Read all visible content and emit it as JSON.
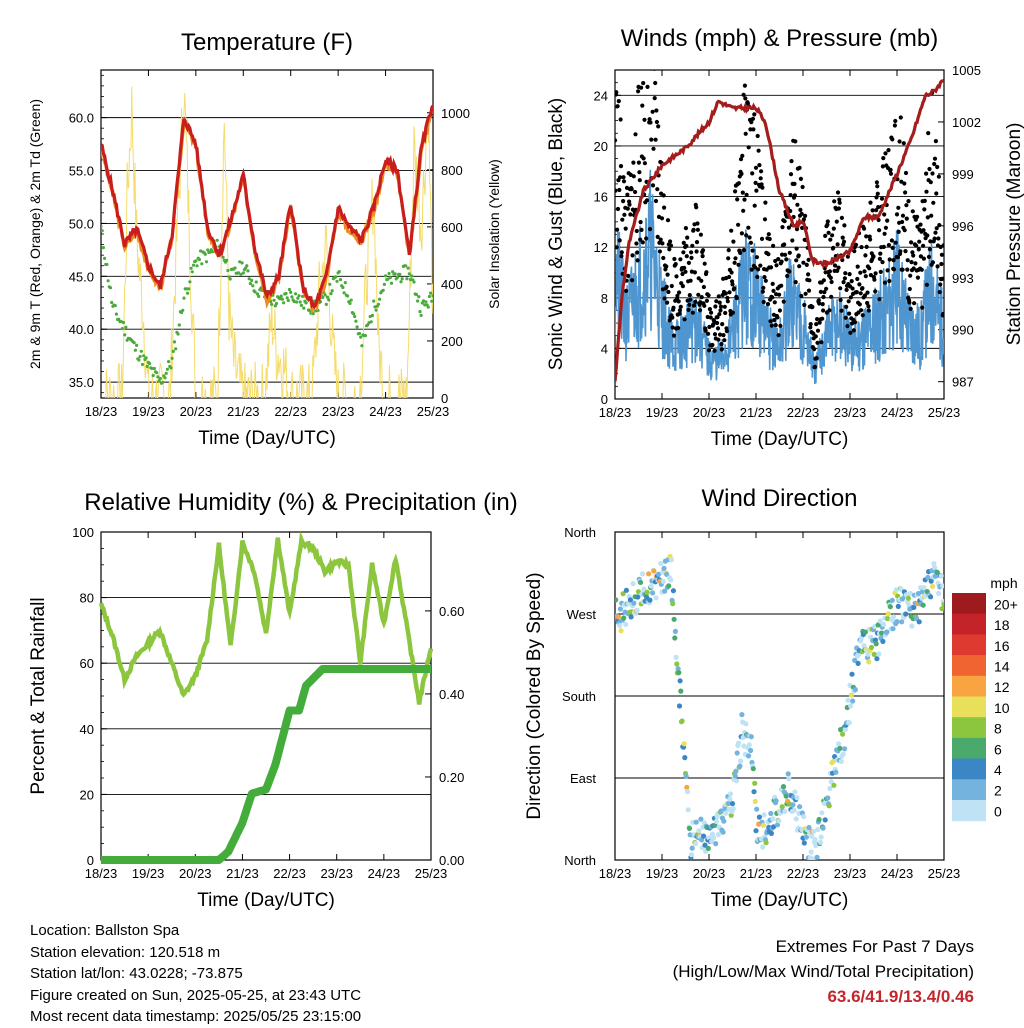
{
  "colors": {
    "temp_2m": "#c81e1e",
    "temp_9m": "#ef8a1e",
    "dewpoint": "#4aab3c",
    "solar": "#f5dc6a",
    "gust": "#000000",
    "sonic_wind": "#4f96d1",
    "pressure": "#a31d1d",
    "rh": "#8cc63f",
    "precip": "#43ac3b"
  },
  "chart_data": [
    {
      "id": "temperature",
      "type": "line",
      "title": "Temperature (F)",
      "xlabel": "Time (Day/UTC)",
      "ylabel_left": "2m & 9m T (Red, Orange) & 2m Td (Green)",
      "ylabel_right": "Solar Insolation (Yellow)",
      "x_ticks": [
        "18/23",
        "19/23",
        "20/23",
        "21/23",
        "22/23",
        "23/23",
        "24/23",
        "25/23"
      ],
      "xlim": [
        0,
        7
      ],
      "ylim_left": [
        33.5,
        64.5
      ],
      "y_ticks_left": [
        "35.0",
        "40.0",
        "45.0",
        "50.0",
        "55.0",
        "60.0"
      ],
      "ylim_right": [
        0,
        1150
      ],
      "y_ticks_right": [
        "0",
        "200",
        "400",
        "600",
        "800",
        "1000"
      ],
      "grid": true,
      "series": [
        {
          "name": "2m T",
          "color": "#c81e1e",
          "x": [
            0,
            0.25,
            0.5,
            0.75,
            1.0,
            1.25,
            1.5,
            1.75,
            2.0,
            2.25,
            2.5,
            2.75,
            3.0,
            3.25,
            3.5,
            3.75,
            4.0,
            4.25,
            4.5,
            4.75,
            5.0,
            5.25,
            5.5,
            5.75,
            6.0,
            6.25,
            6.5,
            6.75,
            7.0
          ],
          "values": [
            57.5,
            53.0,
            48.0,
            49.5,
            46.0,
            44.0,
            49.0,
            60.0,
            57.5,
            49.5,
            47.0,
            50.5,
            54.5,
            47.5,
            43.0,
            45.0,
            52.0,
            44.0,
            42.0,
            45.0,
            51.5,
            49.5,
            48.5,
            51.5,
            56.0,
            55.0,
            47.0,
            57.0,
            61.5
          ]
        },
        {
          "name": "9m T",
          "color": "#ef8a1e",
          "x": [
            0,
            0.25,
            0.5,
            0.75,
            1.0,
            1.25,
            1.5,
            1.75,
            2.0,
            2.25,
            2.5,
            2.75,
            3.0,
            3.25,
            3.5,
            3.75,
            4.0,
            4.25,
            4.5,
            4.75,
            5.0,
            5.25,
            5.5,
            5.75,
            6.0,
            6.25,
            6.5,
            6.75,
            7.0
          ],
          "values": [
            57.2,
            52.7,
            47.8,
            49.2,
            45.8,
            43.8,
            48.7,
            59.6,
            57.2,
            49.2,
            46.8,
            50.2,
            54.2,
            47.3,
            42.8,
            44.8,
            51.7,
            43.8,
            41.8,
            44.8,
            51.2,
            49.2,
            48.3,
            51.2,
            55.7,
            54.7,
            46.8,
            56.7,
            61.0
          ]
        },
        {
          "name": "2m Td",
          "color": "#4aab3c",
          "x": [
            0,
            0.25,
            0.5,
            0.75,
            1.0,
            1.25,
            1.5,
            1.75,
            2.0,
            2.25,
            2.5,
            2.75,
            3.0,
            3.25,
            3.5,
            3.75,
            4.0,
            4.25,
            4.5,
            4.75,
            5.0,
            5.25,
            5.5,
            5.75,
            6.0,
            6.25,
            6.5,
            6.75,
            7.0
          ],
          "values": [
            49.5,
            42.0,
            40.0,
            38.0,
            36.5,
            35.0,
            37.0,
            43.0,
            46.5,
            47.0,
            48.0,
            45.0,
            46.0,
            44.0,
            43.0,
            42.5,
            43.5,
            42.5,
            42.0,
            43.0,
            45.0,
            43.0,
            38.5,
            42.0,
            44.5,
            45.0,
            45.5,
            42.0,
            43.0
          ]
        },
        {
          "name": "Solar Insolation",
          "color": "#f5dc6a",
          "axis": "right",
          "x": [
            0,
            0.45,
            0.55,
            0.65,
            0.75,
            0.9,
            1.0,
            1.45,
            1.6,
            1.75,
            1.9,
            2.0,
            2.45,
            2.6,
            2.7,
            2.8,
            3.0,
            3.45,
            3.6,
            3.7,
            3.85,
            4.0,
            4.45,
            4.6,
            4.75,
            4.9,
            5.0,
            5.45,
            5.6,
            5.75,
            5.85,
            6.0,
            6.45,
            6.6,
            6.75,
            6.9,
            7.0
          ],
          "values": [
            0,
            0,
            700,
            1020,
            560,
            280,
            0,
            0,
            560,
            1090,
            420,
            0,
            0,
            980,
            300,
            120,
            0,
            0,
            290,
            170,
            110,
            0,
            0,
            360,
            540,
            140,
            0,
            0,
            420,
            730,
            180,
            0,
            0,
            880,
            600,
            1020,
            280
          ]
        }
      ]
    },
    {
      "id": "winds",
      "type": "scatter",
      "title": "Winds (mph) & Pressure (mb)",
      "xlabel": "Time (Day/UTC)",
      "ylabel_left": "Sonic Wind & Gust (Blue, Black)",
      "ylabel_right": "Station Pressure (Maroon)",
      "x_ticks": [
        "18/23",
        "19/23",
        "20/23",
        "21/23",
        "22/23",
        "23/23",
        "24/23",
        "25/23"
      ],
      "xlim": [
        0,
        7
      ],
      "ylim_left": [
        0,
        26
      ],
      "y_ticks_left": [
        "0",
        "4",
        "8",
        "12",
        "16",
        "20",
        "24"
      ],
      "ylim_right": [
        986,
        1005
      ],
      "y_ticks_right": [
        "987",
        "990",
        "993",
        "996",
        "999",
        "1002",
        "1005"
      ],
      "grid": true,
      "series": [
        {
          "name": "Gust",
          "color": "#000000",
          "x": [
            0,
            0.25,
            0.5,
            0.75,
            1.0,
            1.25,
            1.5,
            1.75,
            2.0,
            2.25,
            2.5,
            2.75,
            3.0,
            3.25,
            3.5,
            3.75,
            4.0,
            4.25,
            4.5,
            4.75,
            5.0,
            5.25,
            5.5,
            5.75,
            6.0,
            6.25,
            6.5,
            6.75,
            7.0
          ],
          "values": [
            20,
            12,
            18,
            22,
            14,
            8,
            10,
            12,
            6,
            6,
            10,
            18,
            16,
            10,
            8,
            16,
            12,
            4,
            10,
            12,
            8,
            10,
            12,
            14,
            18,
            12,
            10,
            18,
            10
          ]
        },
        {
          "name": "Sonic Wind",
          "color": "#4f96d1",
          "x": [
            0,
            0.25,
            0.5,
            0.75,
            1.0,
            1.25,
            1.5,
            1.75,
            2.0,
            2.25,
            2.5,
            2.75,
            3.0,
            3.25,
            3.5,
            3.75,
            4.0,
            4.25,
            4.5,
            4.75,
            5.0,
            5.25,
            5.5,
            5.75,
            6.0,
            6.25,
            6.5,
            6.75,
            7.0
          ],
          "values": [
            10,
            6,
            9,
            12,
            7,
            4,
            5,
            6,
            3,
            3,
            5,
            9,
            8,
            5,
            4,
            8,
            6,
            2,
            5,
            6,
            4,
            5,
            6,
            7,
            9,
            6,
            5,
            9,
            5
          ]
        },
        {
          "name": "Station Pressure",
          "color": "#a31d1d",
          "axis": "right",
          "x": [
            0,
            0.15,
            0.3,
            0.6,
            1.0,
            1.5,
            2.0,
            2.2,
            2.5,
            3.0,
            3.2,
            3.5,
            3.8,
            4.0,
            4.2,
            4.5,
            5.0,
            5.3,
            5.6,
            6.0,
            6.3,
            6.6,
            6.8,
            7.0
          ],
          "values": [
            987,
            992,
            995,
            998,
            999.5,
            1000.5,
            1002,
            1003.2,
            1002.8,
            1002.8,
            1002,
            998,
            996,
            996.3,
            994,
            993.8,
            994.5,
            996.5,
            996.5,
            999,
            1001,
            1003.5,
            1003.8,
            1004.5
          ]
        }
      ]
    },
    {
      "id": "humidity",
      "type": "line",
      "title": "Relative Humidity (%) & Precipitation (in)",
      "xlabel": "Time (Day/UTC)",
      "ylabel_left": "Percent & Total Rainfall",
      "x_ticks": [
        "18/23",
        "19/23",
        "20/23",
        "21/23",
        "22/23",
        "23/23",
        "24/23",
        "25/23"
      ],
      "xlim": [
        0,
        7
      ],
      "ylim_left": [
        0,
        100
      ],
      "y_ticks_left": [
        "0",
        "20",
        "40",
        "60",
        "80",
        "100"
      ],
      "ylim_right": [
        0,
        0.79
      ],
      "y_ticks_right": [
        "0.00",
        "0.20",
        "0.40",
        "0.60"
      ],
      "grid": true,
      "series": [
        {
          "name": "Relative Humidity",
          "color": "#8cc63f",
          "x": [
            0,
            0.25,
            0.5,
            0.75,
            1.0,
            1.25,
            1.5,
            1.75,
            2.0,
            2.25,
            2.5,
            2.75,
            3.0,
            3.25,
            3.5,
            3.75,
            4.0,
            4.25,
            4.5,
            4.75,
            5.0,
            5.25,
            5.5,
            5.75,
            6.0,
            6.25,
            6.5,
            6.75,
            7.0
          ],
          "values": [
            78,
            68,
            55,
            62,
            66,
            70,
            60,
            50,
            56,
            67,
            96,
            65,
            97,
            88,
            69,
            98,
            75,
            97,
            95,
            88,
            91,
            90,
            60,
            90,
            72,
            92,
            70,
            48,
            65
          ]
        },
        {
          "name": "Total Rainfall",
          "color": "#43ac3b",
          "axis": "right",
          "x": [
            0,
            2.5,
            2.7,
            3.0,
            3.2,
            3.5,
            3.7,
            4.0,
            4.2,
            4.35,
            4.7,
            5.0,
            5.2,
            5.35,
            7.0
          ],
          "values": [
            0,
            0,
            0.02,
            0.09,
            0.16,
            0.17,
            0.23,
            0.36,
            0.36,
            0.42,
            0.46,
            0.46,
            0.46,
            0.46,
            0.46
          ]
        }
      ]
    },
    {
      "id": "wind_direction",
      "type": "scatter",
      "title": "Wind Direction",
      "xlabel": "Time (Day/UTC)",
      "ylabel_left": "Direction (Colored By Speed)",
      "x_ticks": [
        "18/23",
        "19/23",
        "20/23",
        "21/23",
        "22/23",
        "23/23",
        "24/23",
        "25/23"
      ],
      "xlim": [
        0,
        7
      ],
      "ylim_left": [
        0,
        360
      ],
      "y_ticks_left": [
        "North",
        "East",
        "South",
        "West",
        "North"
      ],
      "grid": true,
      "legend_title": "mph",
      "legend_placement": "right",
      "legend": [
        {
          "label": "20+",
          "color": "#9e1a1d"
        },
        {
          "label": "18",
          "color": "#c4232a"
        },
        {
          "label": "16",
          "color": "#de3a2f"
        },
        {
          "label": "14",
          "color": "#f06431"
        },
        {
          "label": "12",
          "color": "#f8a441"
        },
        {
          "label": "10",
          "color": "#e8e05a"
        },
        {
          "label": "8",
          "color": "#8cc63f"
        },
        {
          "label": "6",
          "color": "#4aaa6c"
        },
        {
          "label": "4",
          "color": "#3b86c4"
        },
        {
          "label": "2",
          "color": "#74b3de"
        },
        {
          "label": "0",
          "color": "#bfe3f5"
        }
      ],
      "series": [
        {
          "name": "Direction",
          "x": [
            0,
            0.2,
            0.4,
            0.6,
            0.8,
            1.0,
            1.2,
            1.6,
            1.8,
            2.0,
            2.2,
            2.5,
            2.7,
            2.9,
            3.0,
            3.2,
            3.5,
            3.7,
            3.9,
            4.1,
            4.3,
            4.6,
            4.9,
            5.0,
            5.2,
            5.4,
            5.6,
            5.8,
            6.0,
            6.2,
            6.4,
            6.6,
            6.8,
            7.0
          ],
          "values": [
            265,
            275,
            285,
            295,
            300,
            310,
            315,
            20,
            30,
            25,
            40,
            60,
            140,
            125,
            40,
            30,
            60,
            80,
            50,
            20,
            15,
            90,
            140,
            175,
            230,
            235,
            240,
            265,
            280,
            275,
            270,
            290,
            310,
            290
          ]
        }
      ]
    }
  ],
  "footer": {
    "location": "Location: Ballston Spa",
    "elevation": "Station elevation: 120.518 m",
    "latlon": "Station lat/lon: 43.0228; -73.875",
    "created": "Figure created on Sun, 2025-05-25, at 23:43 UTC",
    "timestamp": "Most recent data timestamp: 2025/05/25 23:15:00"
  },
  "extremes": {
    "title": "Extremes For Past 7 Days",
    "subtitle": "(High/Low/Max Wind/Total Precipitation)",
    "values": "63.6/41.9/13.4/0.46"
  }
}
